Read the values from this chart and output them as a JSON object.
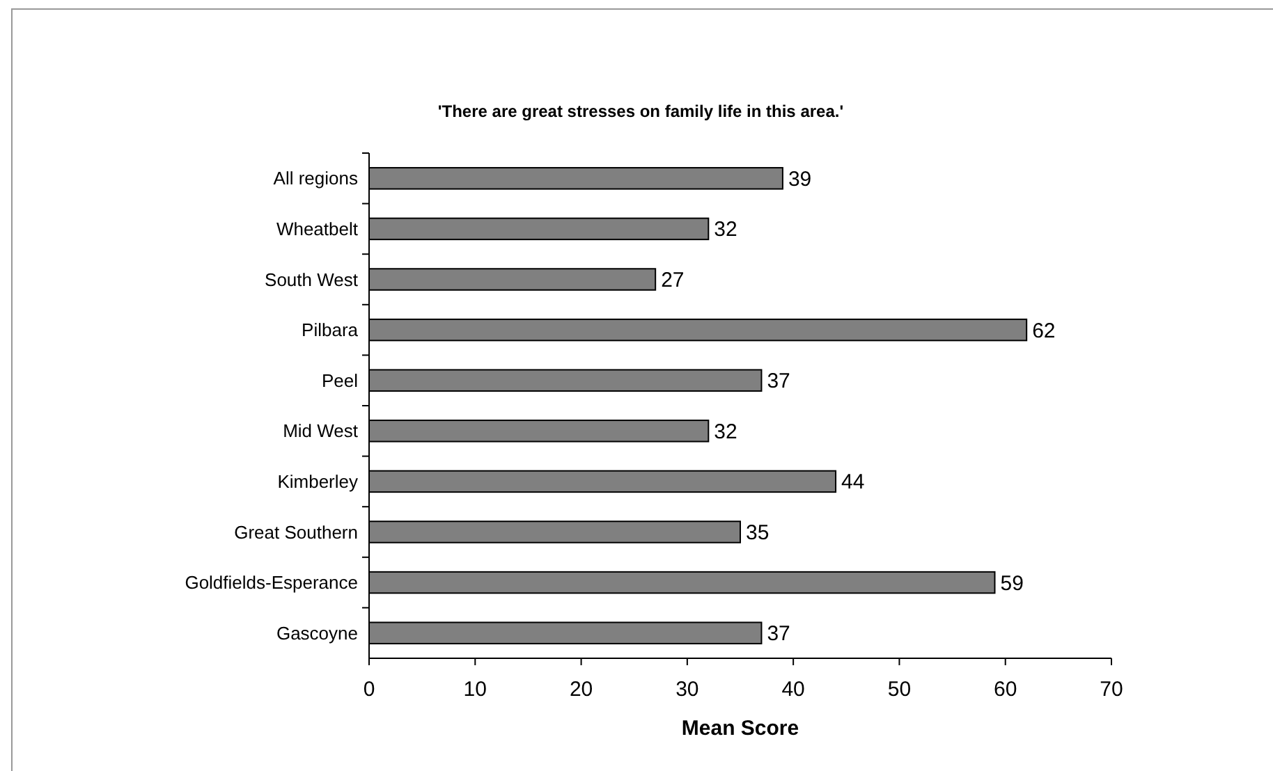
{
  "chart_data": {
    "type": "bar",
    "orientation": "horizontal",
    "title": "'There are great stresses on family life in this area.'",
    "xlabel": "Mean Score",
    "categories": [
      "All regions",
      "Wheatbelt",
      "South West",
      "Pilbara",
      "Peel",
      "Mid West",
      "Kimberley",
      "Great Southern",
      "Goldfields-Esperance",
      "Gascoyne"
    ],
    "values": [
      39,
      32,
      27,
      62,
      37,
      32,
      44,
      35,
      59,
      37
    ],
    "color": "#808080",
    "xlim": [
      0,
      70
    ],
    "xticks": [
      0,
      10,
      20,
      30,
      40,
      50,
      60,
      70
    ],
    "data_labels": true
  }
}
